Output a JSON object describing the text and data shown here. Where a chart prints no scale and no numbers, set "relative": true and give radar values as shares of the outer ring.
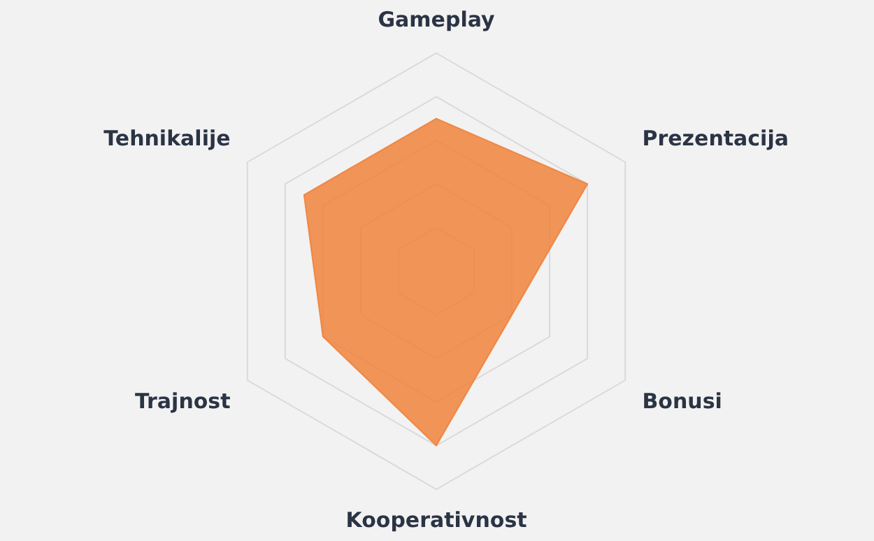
{
  "chart_data": {
    "type": "radar",
    "relative": true,
    "grid": true,
    "legend": false,
    "marker": "none",
    "categories": [
      "Gameplay",
      "Prezentacija",
      "Bonusi",
      "Kooperativnost",
      "Trajnost",
      "Tehnikalije"
    ],
    "series": [
      {
        "color": "#f07f36",
        "values": [
          0.7,
          0.8,
          0.4,
          0.8,
          0.6,
          0.7
        ]
      }
    ]
  }
}
